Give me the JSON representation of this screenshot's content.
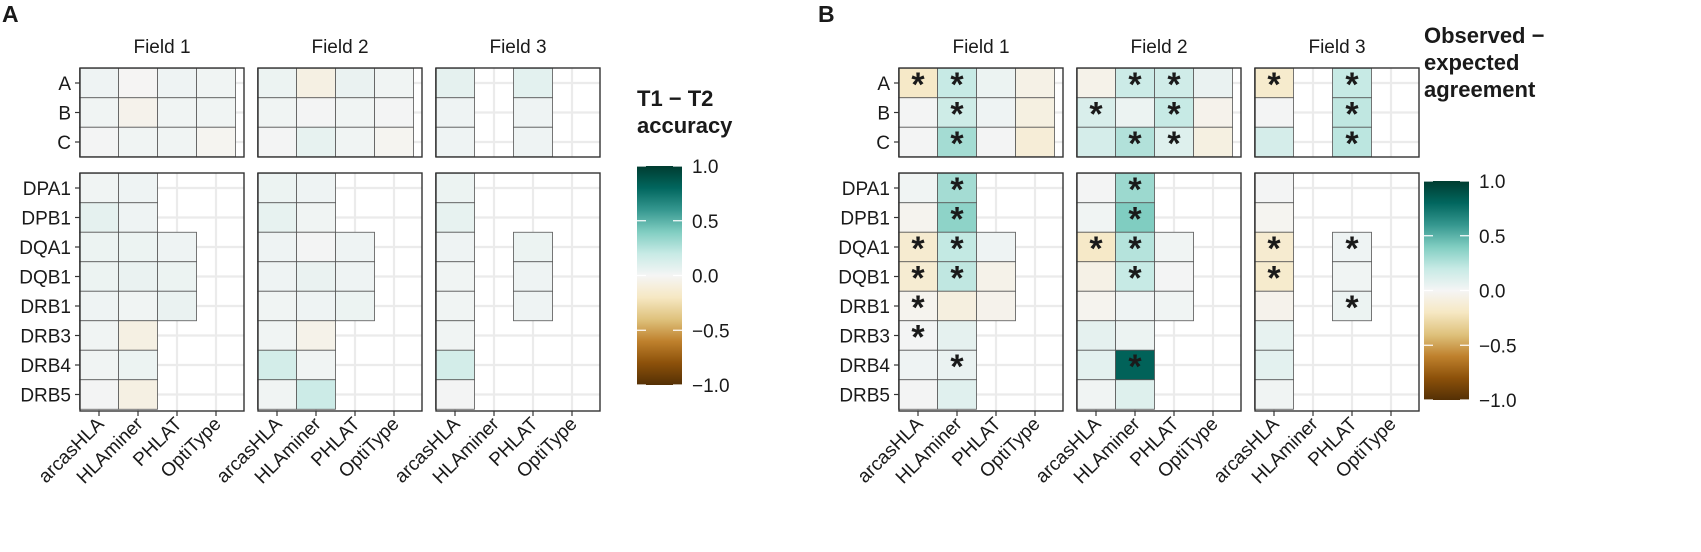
{
  "colors": {
    "scale": [
      "#543005",
      "#8c510a",
      "#bf812d",
      "#dfc27d",
      "#f6e8c3",
      "#f5f5f5",
      "#c7eae5",
      "#80cdc1",
      "#35978f",
      "#01665e",
      "#003c30"
    ],
    "background": "#ffffff",
    "grid": "#ebebeb",
    "frame": "#333333"
  },
  "chart_data": [
    {
      "type": "heatmap",
      "panel_label": "A",
      "legend_title": [
        "T1 − T2",
        "accuracy"
      ],
      "legend_ticks": [
        "1.0",
        "0.5",
        "0.0",
        "−0.5",
        "−1.0"
      ],
      "legend_values": [
        1.0,
        0.5,
        0.0,
        -0.5,
        -1.0
      ],
      "range": [
        -1,
        1
      ],
      "facets": [
        "Field 1",
        "Field 2",
        "Field 3"
      ],
      "tools": [
        "arcasHLA",
        "HLAminer",
        "PHLAT",
        "OptiType"
      ],
      "row_groups": [
        [
          "A",
          "B",
          "C"
        ],
        [
          "DPA1",
          "DPB1",
          "DQA1",
          "DQB1",
          "DRB1",
          "DRB3",
          "DRB4",
          "DRB5"
        ]
      ],
      "values": {
        "Field 1": {
          "A": [
            0.03,
            -0.01,
            0.03,
            0.02
          ],
          "B": [
            0.02,
            -0.04,
            0.02,
            0.02
          ],
          "C": [
            0.01,
            0.02,
            0.02,
            -0.02
          ],
          "DPA1": [
            0.02,
            0.03,
            null,
            null
          ],
          "DPB1": [
            0.07,
            0.03,
            null,
            null
          ],
          "DQA1": [
            0.04,
            0.04,
            0.03,
            null
          ],
          "DQB1": [
            0.04,
            0.05,
            0.04,
            null
          ],
          "DRB1": [
            0.03,
            0.02,
            0.05,
            null
          ],
          "DRB3": [
            0.02,
            -0.07,
            null,
            null
          ],
          "DRB4": [
            0.02,
            0.04,
            null,
            null
          ],
          "DRB5": [
            0.01,
            -0.07,
            null,
            null
          ]
        },
        "Field 2": {
          "A": [
            0.04,
            -0.07,
            0.05,
            0.02
          ],
          "B": [
            0.02,
            0.01,
            0.02,
            0.01
          ],
          "C": [
            0.01,
            0.06,
            0.02,
            -0.02
          ],
          "DPA1": [
            0.04,
            0.03,
            null,
            null
          ],
          "DPB1": [
            0.06,
            0.02,
            null,
            null
          ],
          "DQA1": [
            0.03,
            0.01,
            0.03,
            null
          ],
          "DQB1": [
            0.03,
            0.05,
            0.03,
            null
          ],
          "DRB1": [
            0.02,
            0.03,
            0.04,
            null
          ],
          "DRB3": [
            0.02,
            -0.05,
            null,
            null
          ],
          "DRB4": [
            0.15,
            0.02,
            null,
            null
          ],
          "DRB5": [
            0.02,
            0.18,
            null,
            null
          ]
        },
        "Field 3": {
          "A": [
            0.07,
            null,
            0.08,
            null
          ],
          "B": [
            0.03,
            null,
            0.03,
            null
          ],
          "C": [
            0.03,
            null,
            0.03,
            null
          ],
          "DPA1": [
            0.04,
            null,
            null,
            null
          ],
          "DPB1": [
            0.06,
            null,
            null,
            null
          ],
          "DQA1": [
            0.03,
            null,
            0.04,
            null
          ],
          "DQB1": [
            0.02,
            null,
            0.03,
            null
          ],
          "DRB1": [
            0.02,
            null,
            0.03,
            null
          ],
          "DRB3": [
            0.02,
            null,
            null,
            null
          ],
          "DRB4": [
            0.15,
            null,
            null,
            null
          ],
          "DRB5": [
            0.01,
            null,
            null,
            null
          ]
        }
      },
      "significant": {}
    },
    {
      "type": "heatmap",
      "panel_label": "B",
      "legend_title": [
        "Observed −",
        "expected",
        "agreement"
      ],
      "legend_ticks": [
        "1.0",
        "0.5",
        "0.0",
        "−0.5",
        "−1.0"
      ],
      "legend_values": [
        1.0,
        0.5,
        0.0,
        -0.5,
        -1.0
      ],
      "range": [
        -1,
        1
      ],
      "facets": [
        "Field 1",
        "Field 2",
        "Field 3"
      ],
      "tools": [
        "arcasHLA",
        "HLAminer",
        "PHLAT",
        "OptiType"
      ],
      "row_groups": [
        [
          "A",
          "B",
          "C"
        ],
        [
          "DPA1",
          "DPB1",
          "DQA1",
          "DQB1",
          "DRB1",
          "DRB3",
          "DRB4",
          "DRB5"
        ]
      ],
      "values": {
        "Field 1": {
          "A": [
            -0.18,
            0.2,
            0.04,
            -0.06
          ],
          "B": [
            0.01,
            0.17,
            0.03,
            -0.08
          ],
          "C": [
            0.01,
            0.3,
            0.01,
            -0.12
          ],
          "DPA1": [
            0.02,
            0.3,
            null,
            null
          ],
          "DPB1": [
            -0.03,
            0.36,
            null,
            null
          ],
          "DQA1": [
            -0.15,
            0.21,
            0.03,
            null
          ],
          "DQB1": [
            -0.14,
            0.22,
            -0.05,
            null
          ],
          "DRB1": [
            -0.03,
            -0.09,
            -0.04,
            null
          ],
          "DRB3": [
            0.01,
            0.07,
            null,
            null
          ],
          "DRB4": [
            0.03,
            0.05,
            null,
            null
          ],
          "DRB5": [
            0.01,
            0.09,
            null,
            null
          ]
        },
        "Field 2": {
          "A": [
            -0.05,
            0.18,
            0.16,
            0.05
          ],
          "B": [
            0.12,
            0.04,
            0.2,
            -0.04
          ],
          "C": [
            0.14,
            0.26,
            0.1,
            -0.08
          ],
          "DPA1": [
            0.01,
            0.32,
            null,
            null
          ],
          "DPB1": [
            0.02,
            0.4,
            null,
            null
          ],
          "DQA1": [
            -0.18,
            0.25,
            0.02,
            null
          ],
          "DQB1": [
            -0.06,
            0.2,
            0.01,
            null
          ],
          "DRB1": [
            -0.03,
            0.03,
            0.02,
            null
          ],
          "DRB3": [
            0.07,
            0.04,
            null,
            null
          ],
          "DRB4": [
            0.08,
            0.82,
            null,
            null
          ],
          "DRB5": [
            0.02,
            0.1,
            null,
            null
          ]
        },
        "Field 3": {
          "A": [
            -0.16,
            null,
            0.2,
            null
          ],
          "B": [
            0.01,
            null,
            0.22,
            null
          ],
          "C": [
            0.14,
            null,
            0.23,
            null
          ],
          "DPA1": [
            0.01,
            null,
            null,
            null
          ],
          "DPB1": [
            -0.02,
            null,
            null,
            null
          ],
          "DQA1": [
            -0.15,
            null,
            0.03,
            null
          ],
          "DQB1": [
            -0.16,
            null,
            0.02,
            null
          ],
          "DRB1": [
            -0.04,
            null,
            0.04,
            null
          ],
          "DRB3": [
            0.06,
            null,
            null,
            null
          ],
          "DRB4": [
            0.08,
            null,
            null,
            null
          ],
          "DRB5": [
            0.02,
            null,
            null,
            null
          ]
        }
      },
      "significant": {
        "Field 1": {
          "A": [
            true,
            true,
            false,
            false
          ],
          "B": [
            false,
            true,
            false,
            false
          ],
          "C": [
            false,
            true,
            false,
            false
          ],
          "DPA1": [
            false,
            true,
            false,
            false
          ],
          "DPB1": [
            false,
            true,
            false,
            false
          ],
          "DQA1": [
            true,
            true,
            false,
            false
          ],
          "DQB1": [
            true,
            true,
            false,
            false
          ],
          "DRB1": [
            true,
            false,
            false,
            false
          ],
          "DRB3": [
            true,
            false,
            false,
            false
          ],
          "DRB4": [
            false,
            true,
            false,
            false
          ],
          "DRB5": [
            false,
            false,
            false,
            false
          ]
        },
        "Field 2": {
          "A": [
            false,
            true,
            true,
            false
          ],
          "B": [
            true,
            false,
            true,
            false
          ],
          "C": [
            false,
            true,
            true,
            false
          ],
          "DPA1": [
            false,
            true,
            false,
            false
          ],
          "DPB1": [
            false,
            true,
            false,
            false
          ],
          "DQA1": [
            true,
            true,
            false,
            false
          ],
          "DQB1": [
            false,
            true,
            false,
            false
          ],
          "DRB1": [
            false,
            false,
            false,
            false
          ],
          "DRB3": [
            false,
            false,
            false,
            false
          ],
          "DRB4": [
            false,
            true,
            false,
            false
          ],
          "DRB5": [
            false,
            false,
            false,
            false
          ]
        },
        "Field 3": {
          "A": [
            true,
            false,
            true,
            false
          ],
          "B": [
            false,
            false,
            true,
            false
          ],
          "C": [
            false,
            false,
            true,
            false
          ],
          "DPA1": [
            false,
            false,
            false,
            false
          ],
          "DPB1": [
            false,
            false,
            false,
            false
          ],
          "DQA1": [
            true,
            false,
            true,
            false
          ],
          "DQB1": [
            true,
            false,
            false,
            false
          ],
          "DRB1": [
            false,
            false,
            true,
            false
          ],
          "DRB3": [
            false,
            false,
            false,
            false
          ],
          "DRB4": [
            false,
            false,
            false,
            false
          ],
          "DRB5": [
            false,
            false,
            false,
            false
          ]
        }
      }
    }
  ]
}
